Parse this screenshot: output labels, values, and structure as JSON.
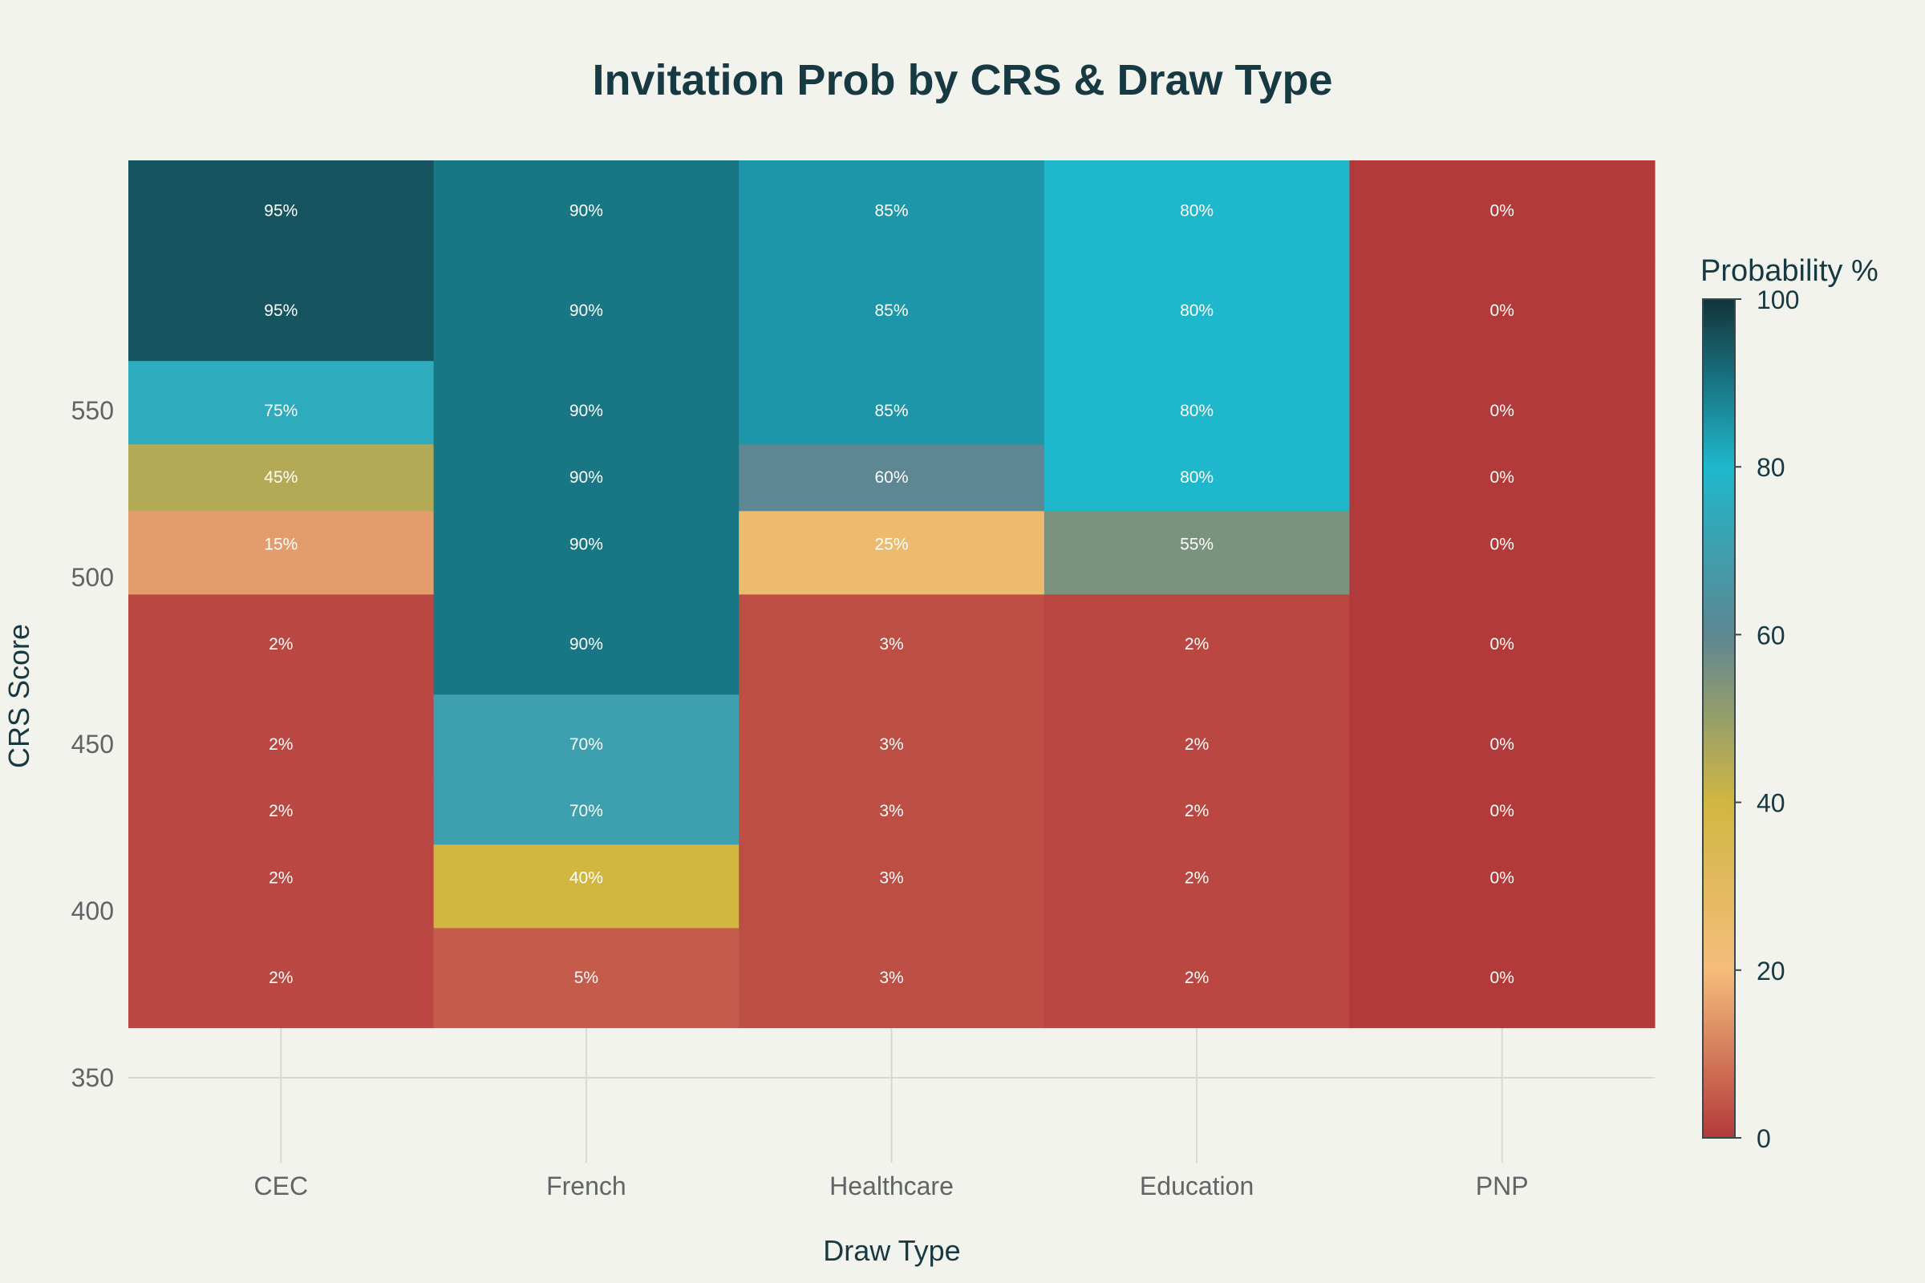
{
  "chart_data": {
    "type": "heatmap",
    "title": "Invitation Prob by CRS & Draw Type",
    "xlabel": "Draw Type",
    "ylabel": "CRS Score",
    "x_categories": [
      "CEC",
      "French",
      "Healthcare",
      "Education",
      "PNP"
    ],
    "y_values": [
      380,
      410,
      430,
      450,
      480,
      510,
      530,
      550,
      580,
      610
    ],
    "ylim": [
      350,
      625
    ],
    "y_ticks": [
      350,
      400,
      450,
      500,
      550
    ],
    "z": [
      [
        2,
        5,
        3,
        2,
        0
      ],
      [
        2,
        40,
        3,
        2,
        0
      ],
      [
        2,
        70,
        3,
        2,
        0
      ],
      [
        2,
        70,
        3,
        2,
        0
      ],
      [
        2,
        90,
        3,
        2,
        0
      ],
      [
        15,
        90,
        25,
        55,
        0
      ],
      [
        45,
        90,
        60,
        80,
        0
      ],
      [
        75,
        90,
        85,
        80,
        0
      ],
      [
        95,
        90,
        85,
        80,
        0
      ],
      [
        95,
        90,
        85,
        80,
        0
      ]
    ],
    "cell_text_suffix": "%",
    "zlim": [
      0,
      100
    ],
    "colorbar": {
      "title": "Probability %",
      "ticks": [
        0,
        20,
        40,
        60,
        80,
        100
      ]
    },
    "colorscale": [
      [
        0,
        "#b33a3a"
      ],
      [
        20,
        "#f5bd7c"
      ],
      [
        40,
        "#d1b642"
      ],
      [
        60,
        "#5d8792"
      ],
      [
        80,
        "#1fb7cc"
      ],
      [
        100,
        "#13343b"
      ]
    ],
    "grid": true,
    "legend": "right"
  }
}
